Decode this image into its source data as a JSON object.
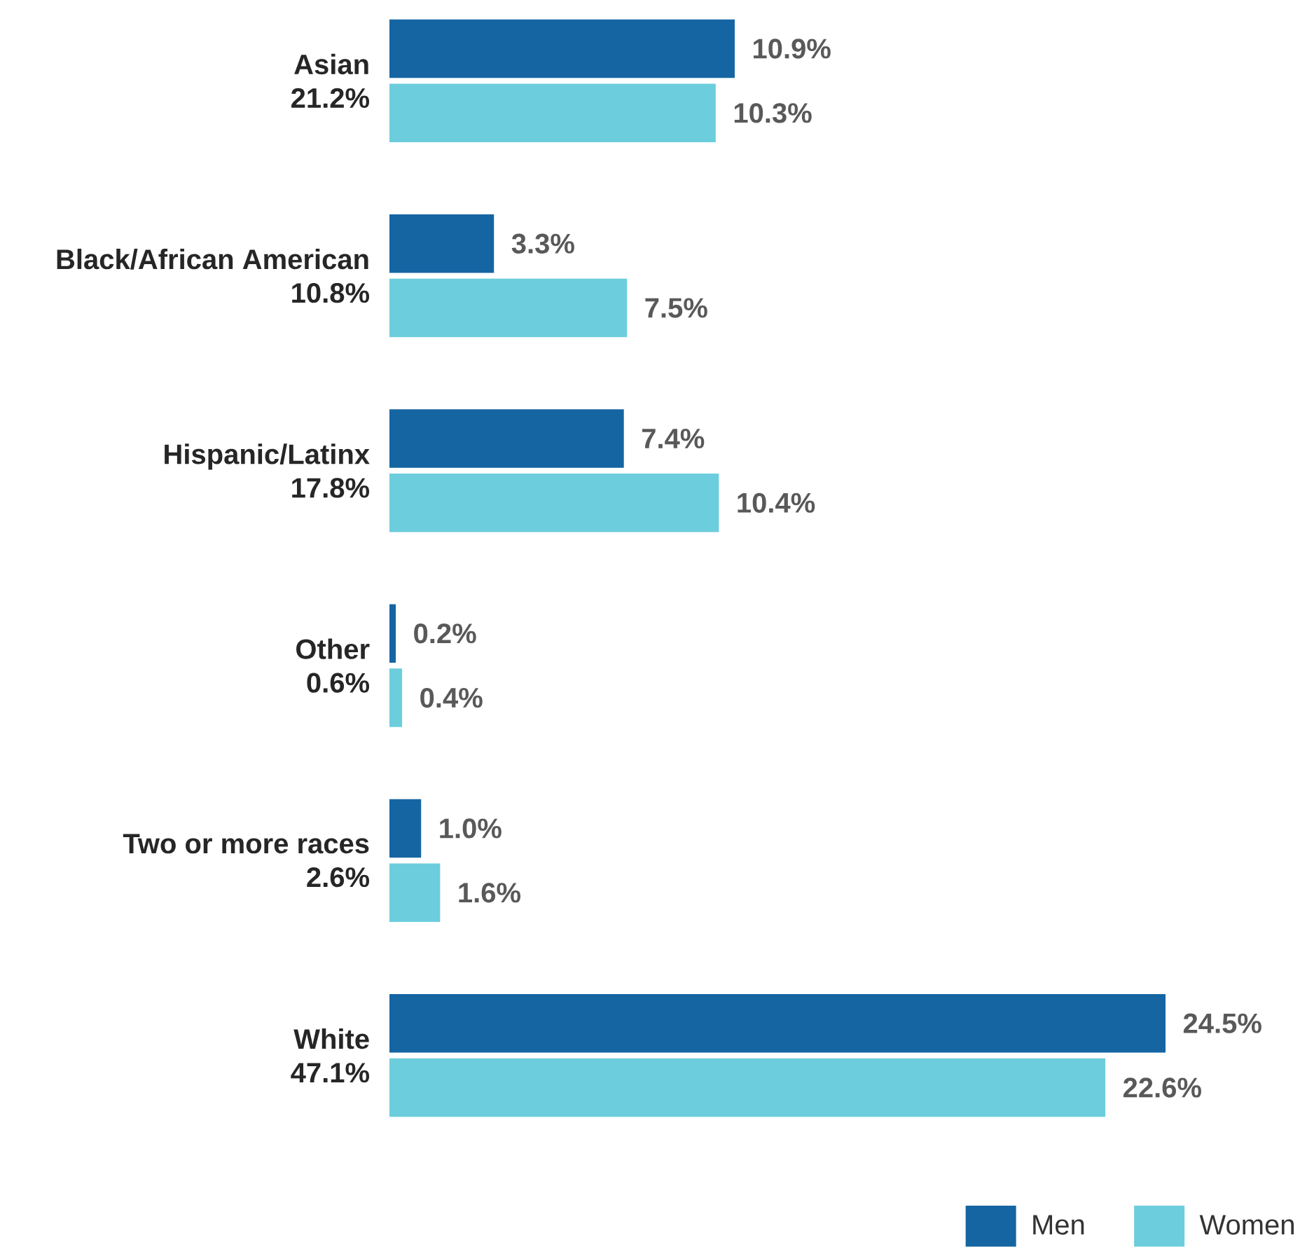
{
  "chart_data": {
    "type": "bar",
    "orientation": "horizontal",
    "categories": [
      "Asian",
      "Black/African American",
      "Hispanic/Latinx",
      "Other",
      "Two or more races",
      "White"
    ],
    "totals": [
      "21.2%",
      "10.8%",
      "17.8%",
      "0.6%",
      "2.6%",
      "47.1%"
    ],
    "series": [
      {
        "name": "Men",
        "color": "#1565a3",
        "values": [
          10.9,
          3.3,
          7.4,
          0.2,
          1.0,
          24.5
        ],
        "value_labels": [
          "10.9%",
          "3.3%",
          "7.4%",
          "0.2%",
          "1.0%",
          "24.5%"
        ]
      },
      {
        "name": "Women",
        "color": "#6ccddc",
        "values": [
          10.3,
          7.5,
          10.4,
          0.4,
          1.6,
          22.6
        ],
        "value_labels": [
          "10.3%",
          "7.5%",
          "10.4%",
          "0.4%",
          "1.6%",
          "22.6%"
        ]
      }
    ],
    "legend": "bottom right"
  }
}
